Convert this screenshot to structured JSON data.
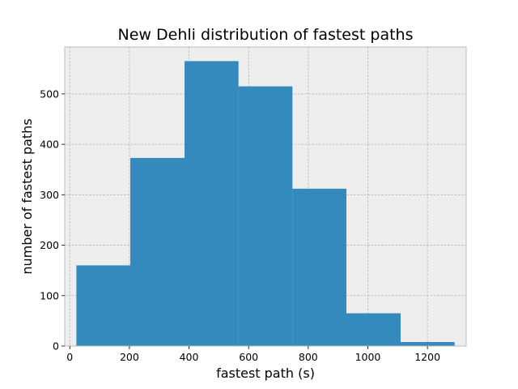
{
  "chart_data": {
    "type": "bar",
    "title": "New Dehli distribution of fastest paths",
    "xlabel": "fastest path (s)",
    "ylabel": "number of fastest paths",
    "bins": [
      {
        "start": 22,
        "end": 203,
        "value": 160
      },
      {
        "start": 203,
        "end": 385,
        "value": 373
      },
      {
        "start": 385,
        "end": 566,
        "value": 565
      },
      {
        "start": 566,
        "end": 747,
        "value": 515
      },
      {
        "start": 747,
        "end": 928,
        "value": 312
      },
      {
        "start": 928,
        "end": 1110,
        "value": 65
      },
      {
        "start": 1110,
        "end": 1291,
        "value": 8
      }
    ],
    "xlim": [
      -17,
      1330
    ],
    "ylim": [
      0,
      593
    ],
    "xticks": [
      {
        "value": 0,
        "label": "0"
      },
      {
        "value": 200,
        "label": "200"
      },
      {
        "value": 400,
        "label": "400"
      },
      {
        "value": 600,
        "label": "600"
      },
      {
        "value": 800,
        "label": "800"
      },
      {
        "value": 1000,
        "label": "1000"
      },
      {
        "value": 1200,
        "label": "1200"
      }
    ],
    "yticks": [
      {
        "value": 0,
        "label": "0"
      },
      {
        "value": 100,
        "label": "100"
      },
      {
        "value": 200,
        "label": "200"
      },
      {
        "value": 300,
        "label": "300"
      },
      {
        "value": 400,
        "label": "400"
      },
      {
        "value": 500,
        "label": "500"
      }
    ],
    "grid": true,
    "colors": {
      "bar": "#348abd",
      "plot_background": "#eeeeee",
      "plot_border": "#bcbcbc",
      "grid": "#b0b0b0"
    }
  }
}
